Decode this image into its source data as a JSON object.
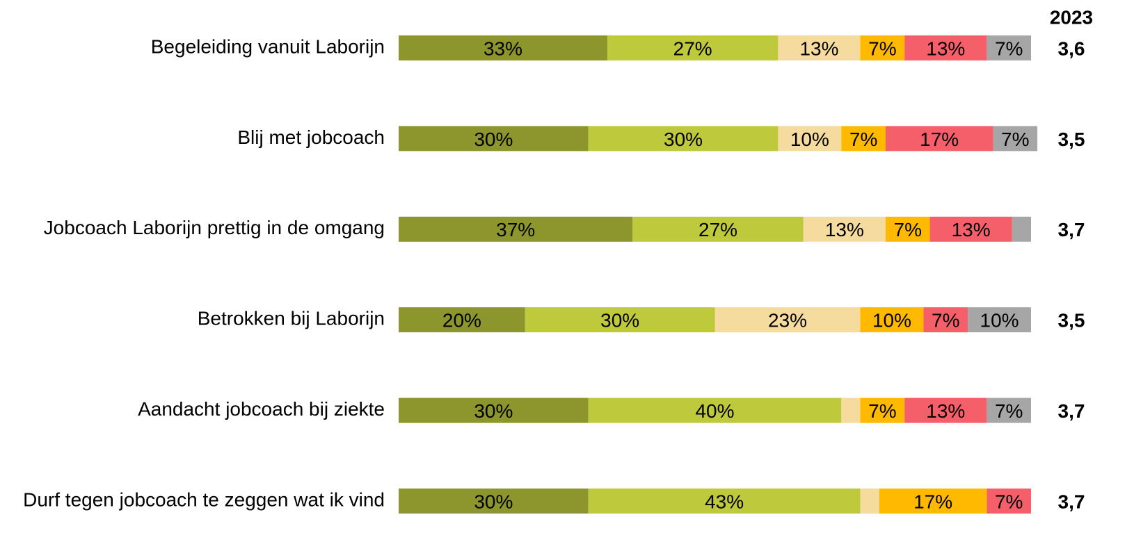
{
  "chart_data": {
    "type": "stacked-barh",
    "categories": [
      "Begeleiding vanuit Laborijn",
      "Blij met jobcoach",
      "Jobcoach Laborijn prettig in de omgang",
      "Betrokken bij Laborijn",
      "Aandacht jobcoach bij ziekte",
      "Durf tegen jobcoach te zeggen wat ik vind"
    ],
    "xlim": [
      0,
      100
    ],
    "series": [
      {
        "color": "#8c962c",
        "values": [
          33,
          30,
          37,
          20,
          30,
          30
        ],
        "value_labels": [
          "33%",
          "30%",
          "37%",
          "20%",
          "30%",
          "30%"
        ]
      },
      {
        "color": "#bfc93c",
        "values": [
          27,
          30,
          27,
          30,
          40,
          43
        ],
        "value_labels": [
          "27%",
          "30%",
          "27%",
          "30%",
          "40%",
          "43%"
        ]
      },
      {
        "color": "#f5dc9e",
        "values": [
          13,
          10,
          13,
          23,
          3,
          3
        ],
        "value_labels": [
          "13%",
          "10%",
          "13%",
          "23%",
          null,
          null
        ]
      },
      {
        "color": "#ffb900",
        "values": [
          7,
          7,
          7,
          10,
          7,
          17
        ],
        "value_labels": [
          "7%",
          "7%",
          "7%",
          "10%",
          "7%",
          "17%"
        ]
      },
      {
        "color": "#f55f6a",
        "values": [
          13,
          17,
          13,
          7,
          13,
          7
        ],
        "value_labels": [
          "13%",
          "17%",
          "13%",
          "7%",
          "13%",
          "7%"
        ]
      },
      {
        "color": "#a6a6a6",
        "values": [
          7,
          7,
          3,
          10,
          7,
          null
        ],
        "value_labels": [
          "7%",
          "7%",
          null,
          "10%",
          "7%",
          null
        ]
      }
    ],
    "scores": {
      "title": "2023",
      "values": [
        "3,6",
        "3,5",
        "3,7",
        "3,5",
        "3,7",
        "3,7"
      ]
    }
  }
}
